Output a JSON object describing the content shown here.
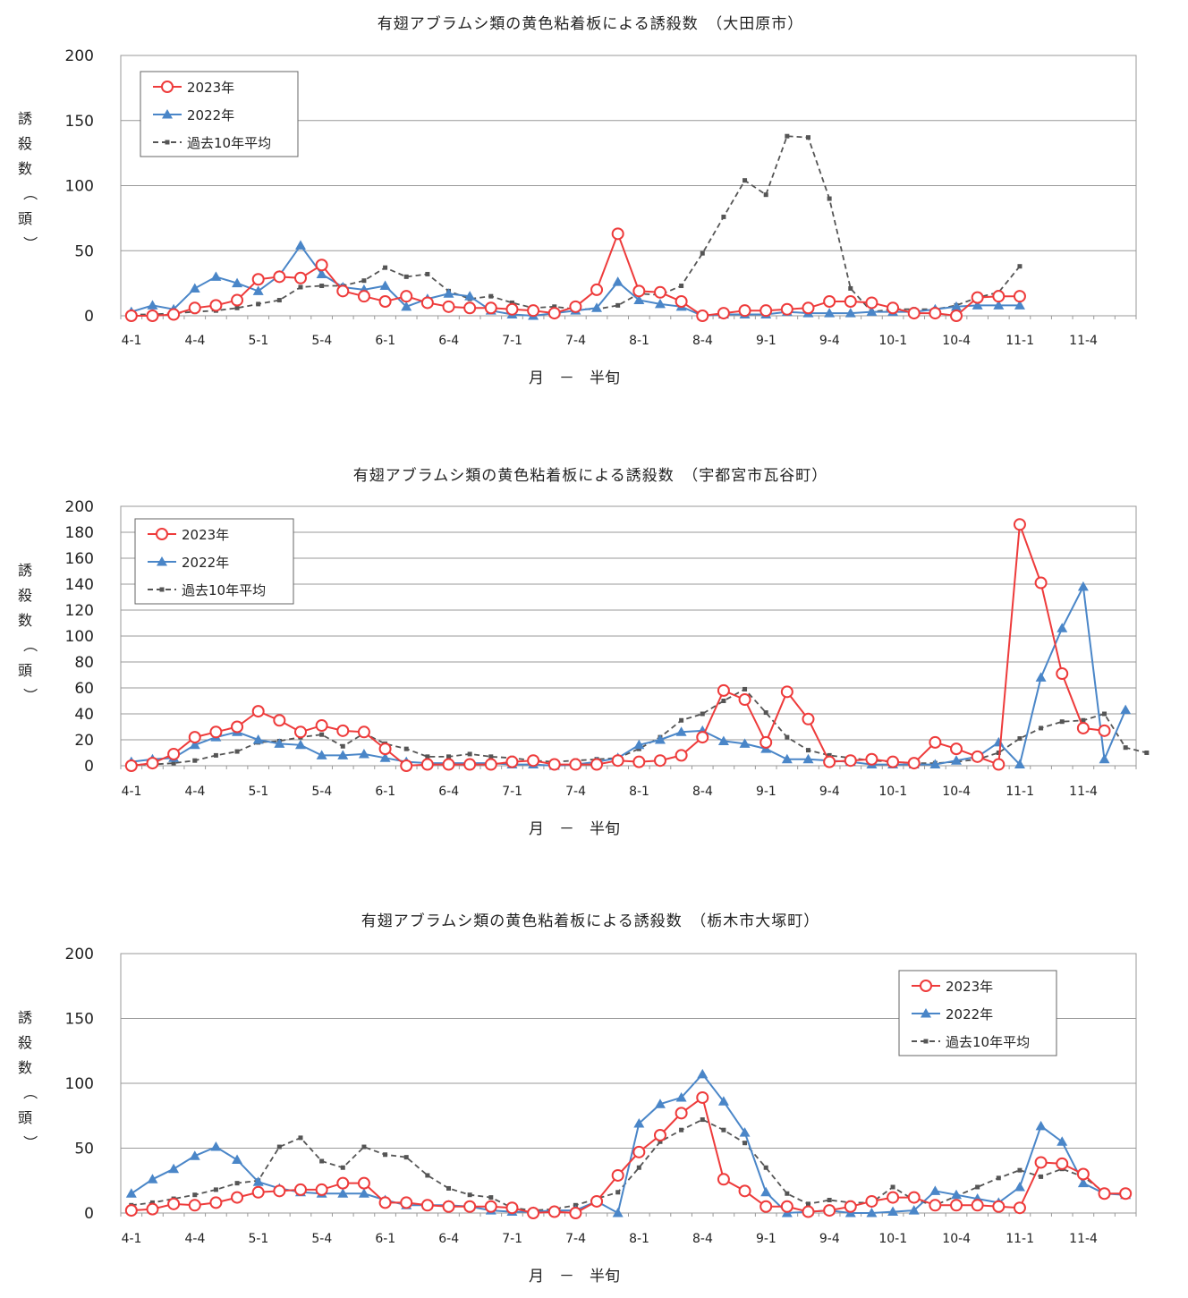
{
  "colors": {
    "y2023": "#ee3b3b",
    "y2022": "#4a86c8",
    "avg": "#555555",
    "grid": "#9a9a9a"
  },
  "chart_data": [
    {
      "type": "line",
      "title": "有翅アブラムシ類の黄色粘着板による誘殺数　（大田原市）",
      "ylabel": "誘殺数（頭）",
      "xlabel": "月　－　半旬",
      "ylim": [
        0,
        200
      ],
      "yticks": [
        0,
        50,
        100,
        150,
        200
      ],
      "grid": true,
      "legend_position": "top-left",
      "x_tick_labels": [
        "4-1",
        "4-4",
        "5-1",
        "5-4",
        "6-1",
        "6-4",
        "7-1",
        "7-4",
        "8-1",
        "8-4",
        "9-1",
        "9-4",
        "10-1",
        "10-4",
        "11-1",
        "11-4"
      ],
      "series": [
        {
          "name": "2023年",
          "values": [
            0,
            0,
            1,
            6,
            8,
            12,
            28,
            30,
            29,
            39,
            19,
            15,
            11,
            15,
            10,
            7,
            6,
            6,
            5,
            4,
            2,
            7,
            20,
            63,
            19,
            18,
            11,
            0,
            2,
            4,
            4,
            5,
            6,
            11,
            11,
            10,
            6,
            2,
            2,
            0,
            14,
            15,
            15
          ]
        },
        {
          "name": "2022年",
          "values": [
            3,
            8,
            5,
            21,
            30,
            25,
            19,
            31,
            54,
            32,
            22,
            20,
            23,
            7,
            13,
            17,
            15,
            4,
            1,
            0,
            2,
            4,
            6,
            26,
            12,
            9,
            7,
            0,
            1,
            1,
            1,
            3,
            2,
            2,
            2,
            3,
            3,
            3,
            5,
            7,
            8,
            8,
            8
          ]
        },
        {
          "name": "過去10年平均",
          "values": [
            1,
            1,
            2,
            3,
            4,
            6,
            9,
            12,
            22,
            23,
            23,
            27,
            37,
            30,
            32,
            19,
            13,
            15,
            10,
            6,
            7,
            5,
            5,
            8,
            17,
            16,
            23,
            48,
            76,
            104,
            93,
            138,
            137,
            90,
            21,
            3,
            5,
            5,
            5,
            8,
            14,
            18,
            38
          ]
        }
      ]
    },
    {
      "type": "line",
      "title": "有翅アブラムシ類の黄色粘着板による誘殺数　（宇都宮市瓦谷町）",
      "ylabel": "誘殺数（頭）",
      "xlabel": "月　－　半旬",
      "ylim": [
        0,
        200
      ],
      "yticks": [
        0,
        20,
        40,
        60,
        80,
        100,
        120,
        140,
        160,
        180,
        200
      ],
      "grid": true,
      "legend_position": "top-left",
      "x_tick_labels": [
        "4-1",
        "4-4",
        "5-1",
        "5-4",
        "6-1",
        "6-4",
        "7-1",
        "7-4",
        "8-1",
        "8-4",
        "9-1",
        "9-4",
        "10-1",
        "10-4",
        "11-1",
        "11-4"
      ],
      "series": [
        {
          "name": "2023年",
          "values": [
            0,
            2,
            9,
            22,
            26,
            30,
            42,
            35,
            26,
            31,
            27,
            26,
            13,
            0,
            1,
            1,
            1,
            1,
            3,
            4,
            1,
            1,
            1,
            4,
            3,
            4,
            8,
            22,
            58,
            51,
            18,
            57,
            36,
            3,
            4,
            5,
            3,
            2,
            18,
            13,
            7,
            1,
            186,
            141,
            71,
            29,
            27
          ]
        },
        {
          "name": "2022年",
          "values": [
            3,
            5,
            6,
            16,
            22,
            26,
            20,
            17,
            16,
            8,
            8,
            9,
            6,
            3,
            2,
            2,
            2,
            2,
            1,
            1,
            0,
            1,
            3,
            6,
            16,
            20,
            26,
            27,
            19,
            17,
            13,
            5,
            5,
            4,
            3,
            1,
            1,
            1,
            1,
            4,
            7,
            18,
            1,
            68,
            106,
            138,
            5,
            43
          ]
        },
        {
          "name": "過去10年平均",
          "values": [
            1,
            1,
            2,
            4,
            8,
            11,
            18,
            19,
            22,
            24,
            15,
            25,
            17,
            13,
            7,
            7,
            9,
            7,
            6,
            4,
            3,
            4,
            5,
            6,
            13,
            22,
            35,
            40,
            50,
            59,
            41,
            22,
            12,
            8,
            6,
            4,
            3,
            2,
            2,
            3,
            5,
            10,
            21,
            29,
            34,
            35,
            40,
            14,
            10
          ]
        }
      ]
    },
    {
      "type": "line",
      "title": "有翅アブラムシ類の黄色粘着板による誘殺数　（栃木市大塚町）",
      "ylabel": "誘殺数（頭）",
      "xlabel": "月　－　半旬",
      "ylim": [
        0,
        200
      ],
      "yticks": [
        0,
        50,
        100,
        150,
        200
      ],
      "grid": true,
      "legend_position": "top-right",
      "x_tick_labels": [
        "4-1",
        "4-4",
        "5-1",
        "5-4",
        "6-1",
        "6-4",
        "7-1",
        "7-4",
        "8-1",
        "8-4",
        "9-1",
        "9-4",
        "10-1",
        "10-4",
        "11-1",
        "11-4"
      ],
      "series": [
        {
          "name": "2023年",
          "values": [
            2,
            3,
            7,
            6,
            8,
            12,
            16,
            17,
            18,
            18,
            23,
            23,
            8,
            8,
            6,
            5,
            5,
            5,
            4,
            0,
            1,
            0,
            9,
            29,
            47,
            60,
            77,
            89,
            26,
            17,
            5,
            5,
            1,
            2,
            5,
            9,
            12,
            12,
            6,
            6,
            6,
            5,
            4,
            39,
            38,
            30,
            15,
            15
          ]
        },
        {
          "name": "2022年",
          "values": [
            15,
            26,
            34,
            44,
            51,
            41,
            24,
            19,
            16,
            15,
            15,
            15,
            10,
            6,
            6,
            6,
            5,
            2,
            1,
            1,
            2,
            2,
            9,
            0,
            69,
            84,
            89,
            107,
            86,
            62,
            16,
            0,
            1,
            2,
            0,
            0,
            1,
            2,
            17,
            14,
            11,
            8,
            20,
            67,
            55,
            23,
            15,
            14
          ]
        },
        {
          "name": "過去10年平均",
          "values": [
            6,
            8,
            11,
            14,
            18,
            23,
            25,
            51,
            58,
            40,
            35,
            51,
            45,
            43,
            29,
            19,
            14,
            12,
            4,
            2,
            3,
            6,
            11,
            16,
            35,
            55,
            64,
            72,
            64,
            54,
            35,
            15,
            7,
            10,
            8,
            8,
            20,
            10,
            6,
            13,
            20,
            27,
            33,
            28,
            34,
            28,
            16
          ]
        }
      ]
    }
  ]
}
